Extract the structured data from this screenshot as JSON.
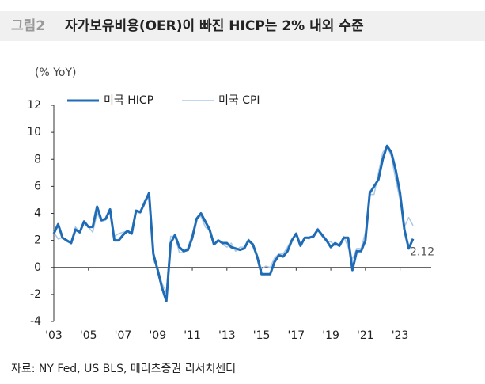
{
  "chart_data": {
    "type": "line",
    "figure_label": "그림2",
    "title": "자가보유비용(OER)이 빠진 HICP는 2% 내외 수준",
    "y_label": "(% YoY)",
    "source": "자료: NY Fed, US BLS, 메리츠증권 리서치센터",
    "annotation": "2.12",
    "x": [
      2003,
      2003.25,
      2003.5,
      2003.75,
      2004,
      2004.25,
      2004.5,
      2004.75,
      2005,
      2005.25,
      2005.5,
      2005.75,
      2006,
      2006.25,
      2006.5,
      2006.75,
      2007,
      2007.25,
      2007.5,
      2007.75,
      2008,
      2008.25,
      2008.5,
      2008.75,
      2009,
      2009.25,
      2009.5,
      2009.75,
      2010,
      2010.25,
      2010.5,
      2010.75,
      2011,
      2011.25,
      2011.5,
      2011.75,
      2012,
      2012.25,
      2012.5,
      2012.75,
      2013,
      2013.25,
      2013.5,
      2013.75,
      2014,
      2014.25,
      2014.5,
      2014.75,
      2015,
      2015.25,
      2015.5,
      2015.75,
      2016,
      2016.25,
      2016.5,
      2016.75,
      2017,
      2017.25,
      2017.5,
      2017.75,
      2018,
      2018.25,
      2018.5,
      2018.75,
      2019,
      2019.25,
      2019.5,
      2019.75,
      2020,
      2020.25,
      2020.5,
      2020.75,
      2021,
      2021.25,
      2021.5,
      2021.75,
      2022,
      2022.25,
      2022.5,
      2022.75,
      2023,
      2023.25,
      2023.5,
      2023.75
    ],
    "series": [
      {
        "name": "미국 HICP",
        "color": "#1f6bb5",
        "width": 3,
        "values": [
          2.5,
          3.2,
          2.2,
          2.0,
          1.8,
          2.8,
          2.6,
          3.4,
          3.0,
          3.0,
          4.5,
          3.5,
          3.6,
          4.3,
          2.0,
          2.0,
          2.4,
          2.7,
          2.5,
          4.2,
          4.1,
          4.8,
          5.5,
          1.0,
          -0.2,
          -1.5,
          -2.5,
          1.8,
          2.4,
          1.5,
          1.2,
          1.3,
          2.2,
          3.6,
          4.0,
          3.4,
          2.8,
          1.7,
          2.0,
          1.8,
          1.8,
          1.5,
          1.4,
          1.3,
          1.4,
          2.0,
          1.7,
          0.8,
          -0.5,
          -0.5,
          -0.5,
          0.4,
          0.9,
          0.8,
          1.2,
          2.0,
          2.5,
          1.6,
          2.2,
          2.2,
          2.3,
          2.8,
          2.4,
          2.0,
          1.5,
          1.8,
          1.6,
          2.2,
          2.2,
          -0.2,
          1.2,
          1.2,
          2.0,
          5.5,
          6.0,
          6.5,
          8.0,
          9.0,
          8.5,
          7.2,
          5.5,
          2.8,
          1.4,
          2.12
        ]
      },
      {
        "name": "미국 CPI",
        "color": "#a9c8e8",
        "width": 1.5,
        "values": [
          2.6,
          2.1,
          2.2,
          1.9,
          1.8,
          3.0,
          2.6,
          3.3,
          3.0,
          2.6,
          4.0,
          3.4,
          3.5,
          4.2,
          2.3,
          2.5,
          2.6,
          2.7,
          2.6,
          4.1,
          4.0,
          5.0,
          5.3,
          0.5,
          0.0,
          -1.2,
          -1.8,
          2.3,
          2.3,
          1.1,
          1.1,
          1.5,
          2.5,
          3.6,
          3.8,
          3.0,
          2.7,
          1.7,
          2.0,
          1.7,
          1.5,
          1.8,
          1.2,
          1.5,
          1.5,
          2.1,
          1.7,
          0.8,
          -0.1,
          0.1,
          0.0,
          0.7,
          1.0,
          1.0,
          1.5,
          2.1,
          2.4,
          1.6,
          2.2,
          2.1,
          2.4,
          2.9,
          2.3,
          1.9,
          1.9,
          1.6,
          1.7,
          2.3,
          1.5,
          0.6,
          1.4,
          1.4,
          2.6,
          5.4,
          5.4,
          7.0,
          8.5,
          9.0,
          8.2,
          6.5,
          5.0,
          3.0,
          3.7,
          3.1
        ]
      }
    ],
    "xlim": [
      2003,
      2024.8
    ],
    "xticks": [
      {
        "value": 2003,
        "label": "'03"
      },
      {
        "value": 2005,
        "label": "'05"
      },
      {
        "value": 2007,
        "label": "'07"
      },
      {
        "value": 2009,
        "label": "'09"
      },
      {
        "value": 2011,
        "label": "'11"
      },
      {
        "value": 2013,
        "label": "'13"
      },
      {
        "value": 2015,
        "label": "'15"
      },
      {
        "value": 2017,
        "label": "'17"
      },
      {
        "value": 2019,
        "label": "'19"
      },
      {
        "value": 2021,
        "label": "'21"
      },
      {
        "value": 2023,
        "label": "'23"
      }
    ],
    "ylim": [
      -4,
      12
    ],
    "yticks": [
      -4,
      -2,
      0,
      2,
      4,
      6,
      8,
      10,
      12
    ],
    "legend": "top"
  }
}
